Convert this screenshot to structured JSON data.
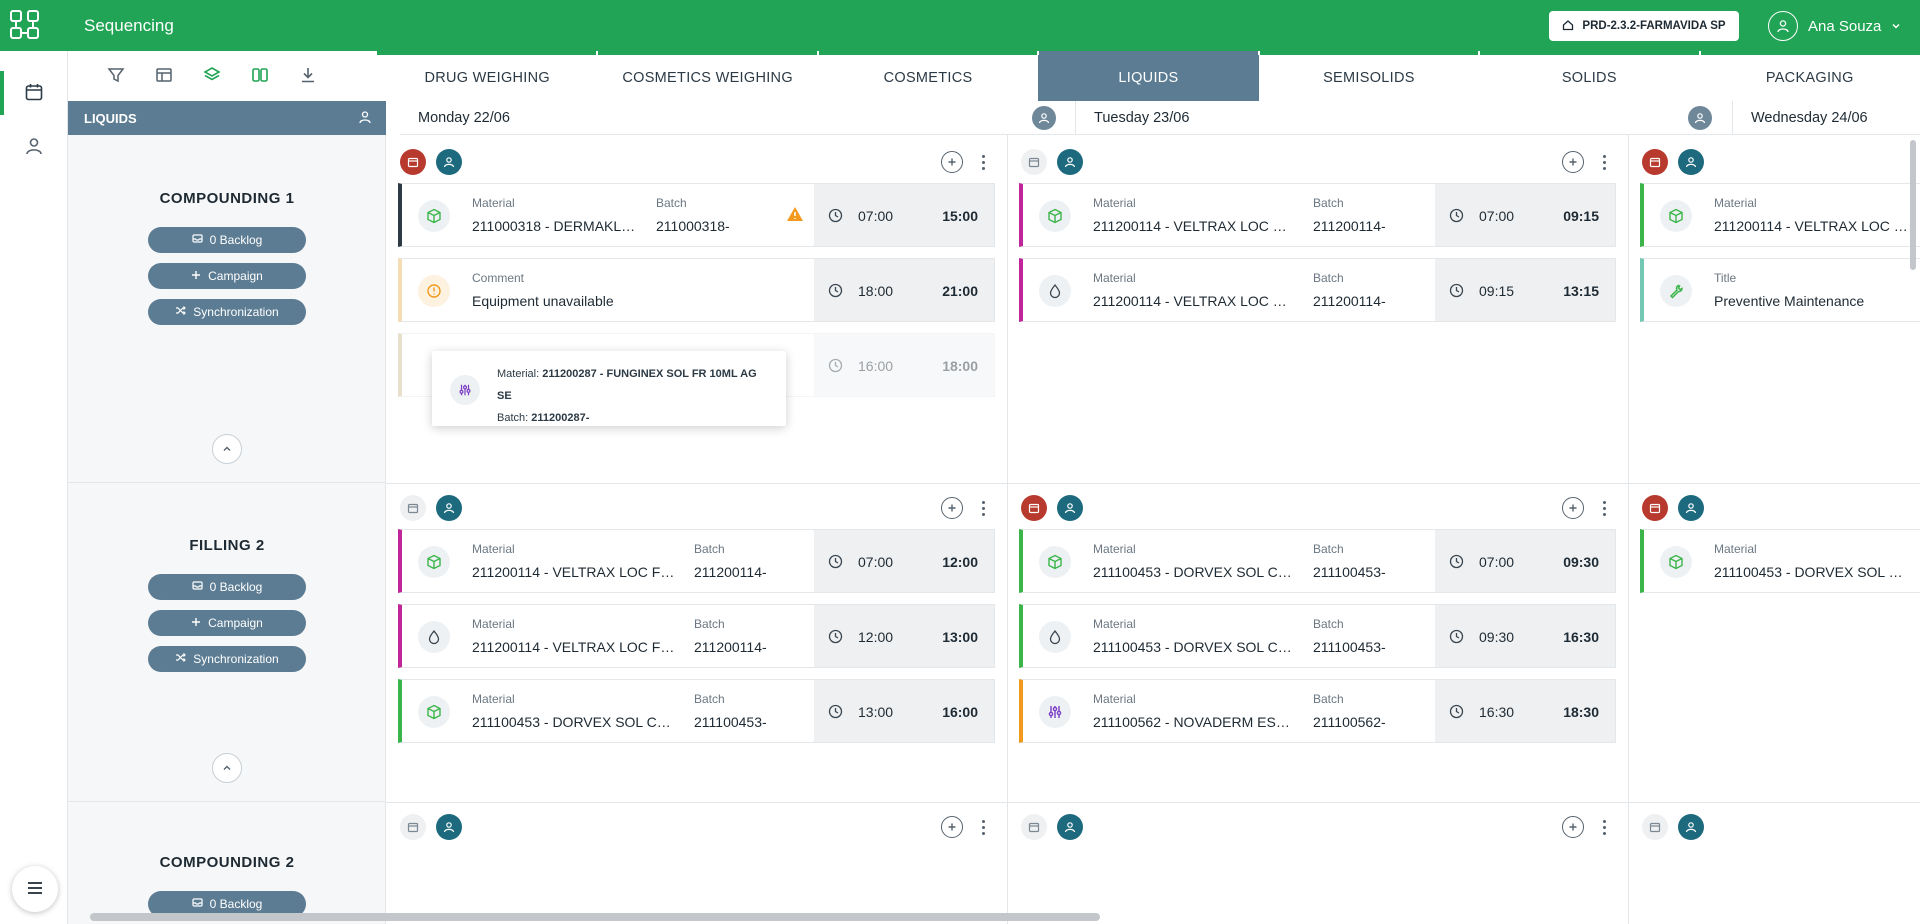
{
  "app": {
    "title": "Sequencing"
  },
  "environment": {
    "label": "PRD-2.3.2-FARMAVIDA SP"
  },
  "user": {
    "name": "Ana Souza"
  },
  "tabs": [
    "DRUG WEIGHING",
    "COSMETICS WEIGHING",
    "COSMETICS",
    "LIQUIDS",
    "SEMISOLIDS",
    "SOLIDS",
    "PACKAGING"
  ],
  "active_tab": "LIQUIDS",
  "line_header": "LIQUIDS",
  "days": [
    "Monday 22/06",
    "Tuesday 23/06",
    "Wednesday 24/06"
  ],
  "resource_buttons": {
    "backlog": "0 Backlog",
    "campaign": "Campaign",
    "sync": "Synchronization"
  },
  "resources": [
    "COMPOUNDING 1",
    "FILLING 2",
    "COMPOUNDING 2"
  ],
  "labels": {
    "material": "Material",
    "batch": "Batch",
    "comment": "Comment",
    "title": "Title"
  },
  "cards": {
    "r1d1c1": {
      "material": "211000318 - DERMAKLE...",
      "batch": "211000318-",
      "start": "07:00",
      "end": "15:00"
    },
    "r1d1c2": {
      "comment": "Equipment unavailable",
      "start": "18:00",
      "end": "21:00"
    },
    "r1d1c3": {
      "start": "16:00",
      "end": "18:00"
    },
    "r1d2c1": {
      "material": "211200114 - VELTRAX LOC FR ...",
      "batch": "211200114-",
      "start": "07:00",
      "end": "09:15"
    },
    "r1d2c2": {
      "material": "211200114 - VELTRAX LOC FR ...",
      "batch": "211200114-",
      "start": "09:15",
      "end": "13:15"
    },
    "r1d3c1": {
      "material": "211200114 - VELTRAX LOC FR ..."
    },
    "r1d3c2": {
      "title": "Preventive Maintenance"
    },
    "r2d1c1": {
      "material": "211200114 - VELTRAX LOC FR ...",
      "batch": "211200114-",
      "start": "07:00",
      "end": "12:00"
    },
    "r2d1c2": {
      "material": "211200114 - VELTRAX LOC FR ...",
      "batch": "211200114-",
      "start": "12:00",
      "end": "13:00"
    },
    "r2d1c3": {
      "material": "211100453 - DORVEX SOL CA...",
      "batch": "211100453-",
      "start": "13:00",
      "end": "16:00"
    },
    "r2d2c1": {
      "material": "211100453 - DORVEX SOL CA...",
      "batch": "211100453-",
      "start": "07:00",
      "end": "09:30"
    },
    "r2d2c2": {
      "material": "211100453 - DORVEX SOL CA...",
      "batch": "211100453-",
      "start": "09:30",
      "end": "16:30"
    },
    "r2d2c3": {
      "material": "211100562 - NOVADERM ESM ...",
      "batch": "211100562-",
      "start": "16:30",
      "end": "18:30"
    },
    "r2d3c1": {
      "material": "211100453 - DORVEX SOL CA..."
    }
  },
  "tooltip": {
    "material_label": "Material:",
    "material_value": "211200287 - FUNGINEX SOL FR 10ML AG SE",
    "batch_label": "Batch:",
    "batch_value": "211200287-"
  },
  "colors": {
    "header_green": "#21a455",
    "slate": "#5c7c93",
    "teal": "#1d6a7f",
    "red": "#b83a2e",
    "magenta": "#c0259a",
    "green": "#3bb54a",
    "orange": "#f39a1e",
    "navy": "#2c3a45",
    "tan": "#f4dcb5",
    "mint": "#74c7b3",
    "khaki": "#cbbd8f"
  },
  "icons": {
    "logo": "logo-icon",
    "filter": "filter-icon",
    "table": "table-icon",
    "layers": "layers-icon",
    "columns": "columns-icon",
    "download": "download-icon",
    "calendar": "calendar-icon",
    "person": "person-icon",
    "menu": "menu-icon",
    "home": "home-icon",
    "chevron": "chevron-down-icon",
    "cube": "cube-icon",
    "drop": "drop-icon",
    "mixer": "mixer-icon",
    "wrench": "wrench-icon",
    "alert": "alert-circle-icon",
    "warning": "warning-icon",
    "clock": "clock-icon"
  }
}
